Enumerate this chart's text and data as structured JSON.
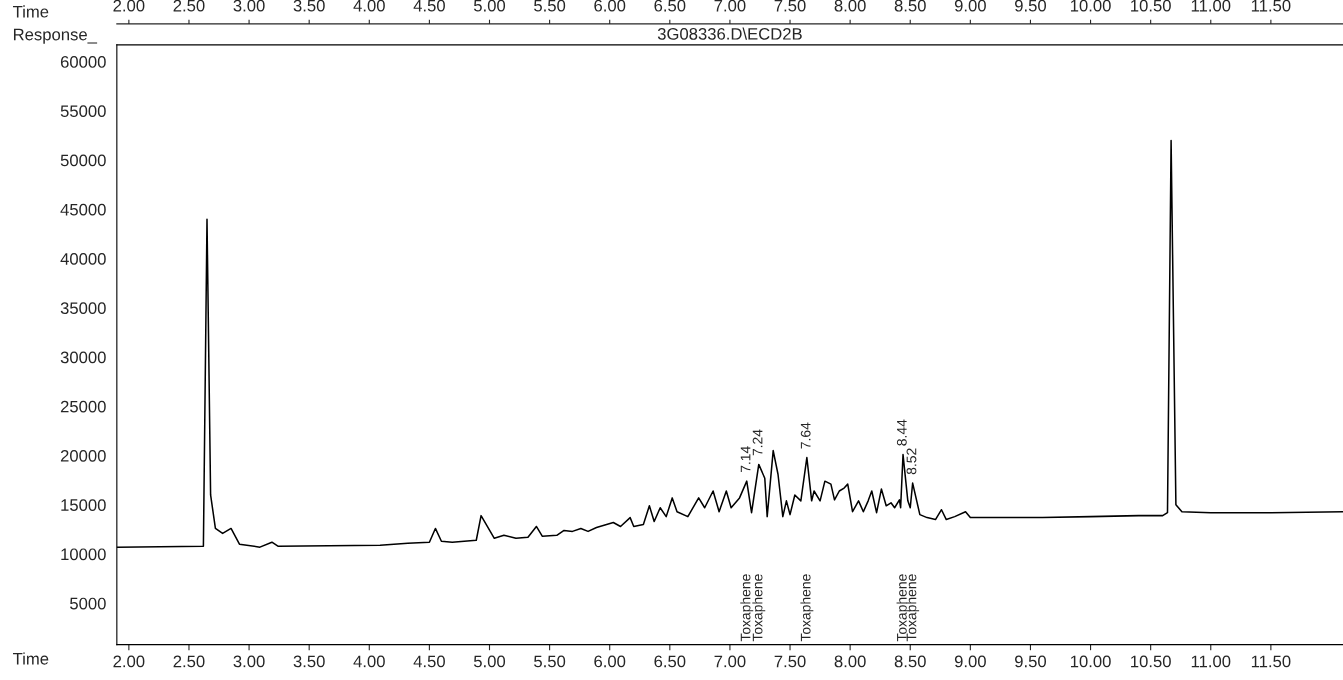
{
  "chart_data": {
    "type": "line",
    "title": "3G08336.D\\ECD2B",
    "xlabel": "Time",
    "ylabel": "Response_",
    "x2label": "Time",
    "x": [
      1.9,
      2.62,
      2.65,
      2.68,
      2.72,
      2.78,
      2.85,
      2.92,
      3.09,
      3.19,
      3.24,
      4.09,
      4.32,
      4.5,
      4.55,
      4.6,
      4.69,
      4.89,
      4.93,
      5.04,
      5.12,
      5.22,
      5.32,
      5.39,
      5.44,
      5.56,
      5.62,
      5.69,
      5.76,
      5.82,
      5.89,
      6.03,
      6.09,
      6.17,
      6.2,
      6.28,
      6.33,
      6.37,
      6.42,
      6.47,
      6.52,
      6.56,
      6.65,
      6.74,
      6.79,
      6.86,
      6.91,
      6.97,
      7.01,
      7.08,
      7.14,
      7.18,
      7.24,
      7.29,
      7.31,
      7.36,
      7.4,
      7.44,
      7.47,
      7.5,
      7.54,
      7.59,
      7.64,
      7.68,
      7.7,
      7.75,
      7.79,
      7.84,
      7.87,
      7.91,
      7.95,
      7.98,
      8.02,
      8.07,
      8.11,
      8.15,
      8.18,
      8.22,
      8.26,
      8.3,
      8.34,
      8.37,
      8.41,
      8.42,
      8.44,
      8.48,
      8.5,
      8.52,
      8.58,
      8.64,
      8.71,
      8.76,
      8.8,
      8.87,
      8.96,
      9.0,
      9.1,
      9.26,
      9.6,
      10.0,
      10.4,
      10.6,
      10.64,
      10.67,
      10.71,
      10.76,
      11.0,
      11.5,
      12.1
    ],
    "series": [
      {
        "color": "#000000",
        "values": [
          10700,
          10800,
          44000,
          16000,
          12600,
          12100,
          12600,
          11000,
          10700,
          11200,
          10800,
          10900,
          11100,
          11200,
          12600,
          11300,
          11200,
          11400,
          13900,
          11600,
          11900,
          11600,
          11700,
          12800,
          11800,
          11900,
          12400,
          12300,
          12600,
          12300,
          12700,
          13200,
          12800,
          13700,
          12800,
          13000,
          14900,
          13300,
          14700,
          13800,
          15700,
          14300,
          13800,
          15700,
          14700,
          16400,
          14300,
          16400,
          14700,
          15700,
          17400,
          14200,
          19100,
          17700,
          13800,
          20500,
          18100,
          13800,
          15400,
          14000,
          16000,
          15400,
          19800,
          15400,
          16400,
          15400,
          17400,
          17100,
          15500,
          16400,
          16700,
          17100,
          14300,
          15400,
          14300,
          15400,
          16400,
          14200,
          16600,
          14900,
          15200,
          14700,
          15500,
          14700,
          20100,
          15400,
          14700,
          17200,
          14000,
          13700,
          13500,
          14500,
          13500,
          13800,
          14300,
          13700,
          13700,
          13700,
          13700,
          13800,
          13900,
          13900,
          14200,
          52000,
          15000,
          14300,
          14200,
          14200,
          14300
        ]
      }
    ],
    "xlim": [
      1.9,
      12.1
    ],
    "ylim": [
      800,
      61700
    ],
    "xticks": [
      {
        "value": 2,
        "label": "2.00"
      },
      {
        "value": 2.5,
        "label": "2.50"
      },
      {
        "value": 3,
        "label": "3.00"
      },
      {
        "value": 3.5,
        "label": "3.50"
      },
      {
        "value": 4,
        "label": "4.00"
      },
      {
        "value": 4.5,
        "label": "4.50"
      },
      {
        "value": 5,
        "label": "5.00"
      },
      {
        "value": 5.5,
        "label": "5.50"
      },
      {
        "value": 6,
        "label": "6.00"
      },
      {
        "value": 6.5,
        "label": "6.50"
      },
      {
        "value": 7,
        "label": "7.00"
      },
      {
        "value": 7.5,
        "label": "7.50"
      },
      {
        "value": 8,
        "label": "8.00"
      },
      {
        "value": 8.5,
        "label": "8.50"
      },
      {
        "value": 9,
        "label": "9.00"
      },
      {
        "value": 9.5,
        "label": "9.50"
      },
      {
        "value": 10,
        "label": "10.00"
      },
      {
        "value": 10.5,
        "label": "10.50"
      },
      {
        "value": 11,
        "label": "11.00"
      },
      {
        "value": 11.5,
        "label": "11.50"
      }
    ],
    "x2lim": [
      1.9,
      12.1
    ],
    "x2ticks": [
      {
        "value": 2,
        "label": "2.00"
      },
      {
        "value": 2.5,
        "label": "2.50"
      },
      {
        "value": 3,
        "label": "3.00"
      },
      {
        "value": 3.5,
        "label": "3.50"
      },
      {
        "value": 4,
        "label": "4.00"
      },
      {
        "value": 4.5,
        "label": "4.50"
      },
      {
        "value": 5,
        "label": "5.00"
      },
      {
        "value": 5.5,
        "label": "5.50"
      },
      {
        "value": 6,
        "label": "6.00"
      },
      {
        "value": 6.5,
        "label": "6.50"
      },
      {
        "value": 7,
        "label": "7.00"
      },
      {
        "value": 7.5,
        "label": "7.50"
      },
      {
        "value": 8,
        "label": "8.00"
      },
      {
        "value": 8.5,
        "label": "8.50"
      },
      {
        "value": 9,
        "label": "9.00"
      },
      {
        "value": 9.5,
        "label": "9.50"
      },
      {
        "value": 10,
        "label": "10.00"
      },
      {
        "value": 10.5,
        "label": "10.50"
      },
      {
        "value": 11,
        "label": "11.00"
      },
      {
        "value": 11.5,
        "label": "11.50"
      }
    ],
    "yticks": [
      5000,
      10000,
      15000,
      20000,
      25000,
      30000,
      35000,
      40000,
      45000,
      50000,
      55000,
      60000
    ],
    "grid": false,
    "legend": false,
    "annotations": [
      {
        "text": "7.14",
        "x": 7.14,
        "y": 17400
      },
      {
        "text": "7.24",
        "x": 7.24,
        "y": 19100
      },
      {
        "text": "7.64",
        "x": 7.64,
        "y": 19800
      },
      {
        "text": "8.44",
        "x": 8.44,
        "y": 20100
      },
      {
        "text": "8.52",
        "x": 8.52,
        "y": 17200
      },
      "Toxaphene",
      "Toxaphene",
      "Toxaphene",
      "Toxaphene",
      "Toxaphene"
    ]
  }
}
